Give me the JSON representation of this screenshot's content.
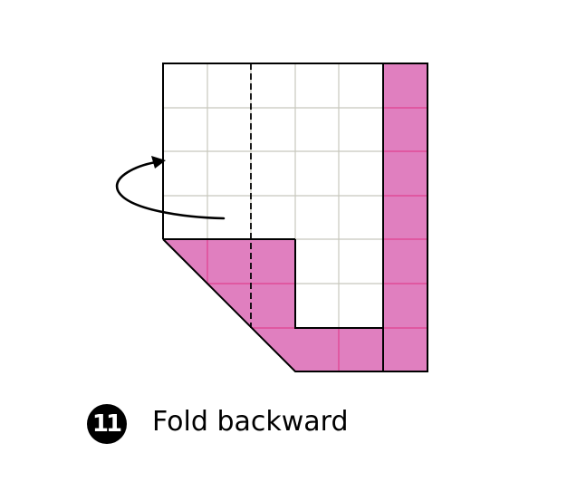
{
  "step": {
    "number": "11",
    "instruction": "Fold backward"
  },
  "diagram": {
    "grid_columns": 6,
    "grid_rows": 7,
    "colors": {
      "paper_white": "#ffffff",
      "paper_colored": "#e07fbf",
      "grid_line_white": "#c8c8bd",
      "grid_line_colored": "#e0408f",
      "outline": "#000000"
    },
    "arrow_type": "fold-backward-arrow",
    "fold_line_type": "valley-dashed"
  }
}
